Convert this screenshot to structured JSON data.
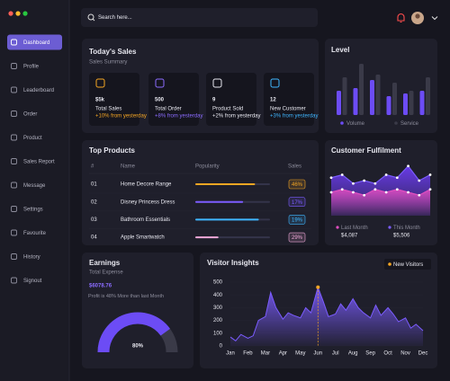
{
  "sidebar": {
    "menu": [
      "Dashboard",
      "Profile",
      "Leaderboard",
      "Order",
      "Product",
      "Sales Report",
      "Message",
      "Settings",
      "Favourite",
      "History",
      "Signout"
    ],
    "active": 0
  },
  "search": {
    "placeholder": "Search here..."
  },
  "todays_sales": {
    "title": "Today's Sales",
    "subtitle": "Sales Summary",
    "cards": [
      {
        "value": "$5k",
        "label": "Total Sales",
        "change": "+10% from yesterday",
        "color": "#f5a623"
      },
      {
        "value": "500",
        "label": "Total Order",
        "change": "+8% from yesterday",
        "color": "#8b6cff"
      },
      {
        "value": "9",
        "label": "Product Sold",
        "change": "+2% from yesterday",
        "color": "#e8e8f0"
      },
      {
        "value": "12",
        "label": "New Customer",
        "change": "+3% from yesterday",
        "color": "#3fb6ff"
      }
    ]
  },
  "level": {
    "title": "Level",
    "ylim": [
      0,
      100
    ],
    "series": [
      {
        "name": "Volume",
        "color": "#6c4cf5",
        "values": [
          45,
          50,
          65,
          35,
          40,
          45
        ]
      },
      {
        "name": "Service",
        "color": "#3a3a48",
        "values": [
          70,
          95,
          75,
          60,
          45,
          70
        ]
      }
    ]
  },
  "top_products": {
    "title": "Top Products",
    "columns": [
      "#",
      "Name",
      "Popularity",
      "Sales"
    ],
    "popularity_max": 100,
    "rows": [
      {
        "rank": "01",
        "name": "Home Decore Range",
        "popularity": 80,
        "sales": "46%",
        "color": "#f5a623"
      },
      {
        "rank": "02",
        "name": "Disney Princess Dress",
        "popularity": 64,
        "sales": "17%",
        "color": "#7b5cff"
      },
      {
        "rank": "03",
        "name": "Bathroom Essentials",
        "popularity": 85,
        "sales": "19%",
        "color": "#3fb6ff"
      },
      {
        "rank": "04",
        "name": "Apple Smartwatch",
        "popularity": 31,
        "sales": "29%",
        "color": "#f0a8d8"
      }
    ]
  },
  "customer_fulfilment": {
    "title": "Customer Fulfilment",
    "ylim": [
      0,
      100
    ],
    "series": [
      {
        "name": "Last Month",
        "total": "$4,087",
        "color": "#e04ec0",
        "values": [
          40,
          45,
          40,
          35,
          45,
          40,
          45,
          40,
          35,
          45
        ]
      },
      {
        "name": "This Month",
        "total": "$5,506",
        "color": "#7b5cff",
        "values": [
          65,
          70,
          55,
          60,
          55,
          70,
          65,
          85,
          60,
          70
        ]
      }
    ]
  },
  "earnings": {
    "title": "Earnings",
    "subtitle": "Total Expense",
    "amount": "$6078.76",
    "note": "Profit is 48% More than last Month",
    "gauge": {
      "value": 80,
      "value_label": "80%",
      "max": 100
    }
  },
  "visitor_insights": {
    "title": "Visitor Insights",
    "legend": "New Visitors",
    "color": "#7b5cff",
    "categories": [
      "Jan",
      "Feb",
      "Mar",
      "Apr",
      "May",
      "Jun",
      "Jul",
      "Aug",
      "Sep",
      "Oct",
      "Nov",
      "Dec"
    ],
    "ylim": [
      0,
      500
    ],
    "yticks": [
      0,
      100,
      200,
      300,
      400,
      500
    ],
    "x": [
      0,
      0.3,
      0.6,
      1,
      1.3,
      1.6,
      2,
      2.3,
      2.6,
      3,
      3.3,
      3.6,
      4,
      4.3,
      4.6,
      5,
      5.3,
      5.6,
      6,
      6.3,
      6.6,
      7,
      7.3,
      7.6,
      8,
      8.3,
      8.6,
      9,
      9.3,
      9.6,
      10,
      10.3,
      10.6,
      11
    ],
    "values": [
      70,
      40,
      90,
      60,
      80,
      200,
      230,
      420,
      300,
      210,
      260,
      240,
      220,
      300,
      260,
      460,
      350,
      230,
      250,
      330,
      280,
      370,
      300,
      260,
      220,
      320,
      240,
      300,
      250,
      190,
      220,
      140,
      170,
      120
    ],
    "highlight": 15
  }
}
